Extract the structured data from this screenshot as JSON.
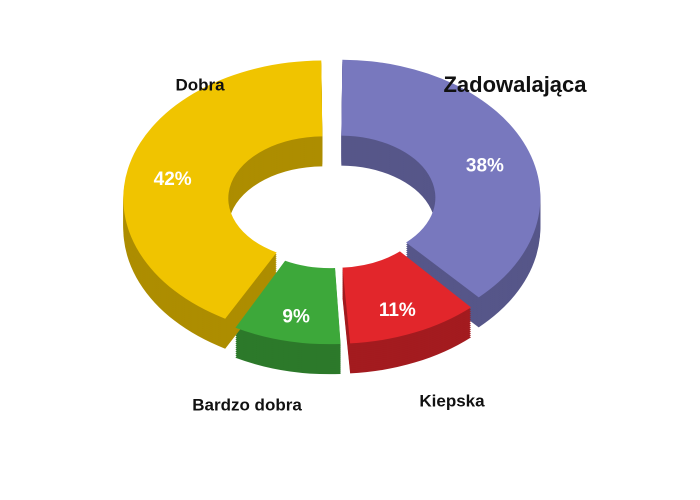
{
  "chart_data": {
    "type": "donut",
    "categories": [
      "Zadowalająca",
      "Kiepska",
      "Bardzo dobra",
      "Dobra"
    ],
    "values": [
      38,
      11,
      9,
      42
    ],
    "value_labels": [
      "38%",
      "11%",
      "9%",
      "42%"
    ],
    "colors": [
      "#7878be",
      "#e2262b",
      "#3da83a",
      "#f0c400"
    ]
  }
}
